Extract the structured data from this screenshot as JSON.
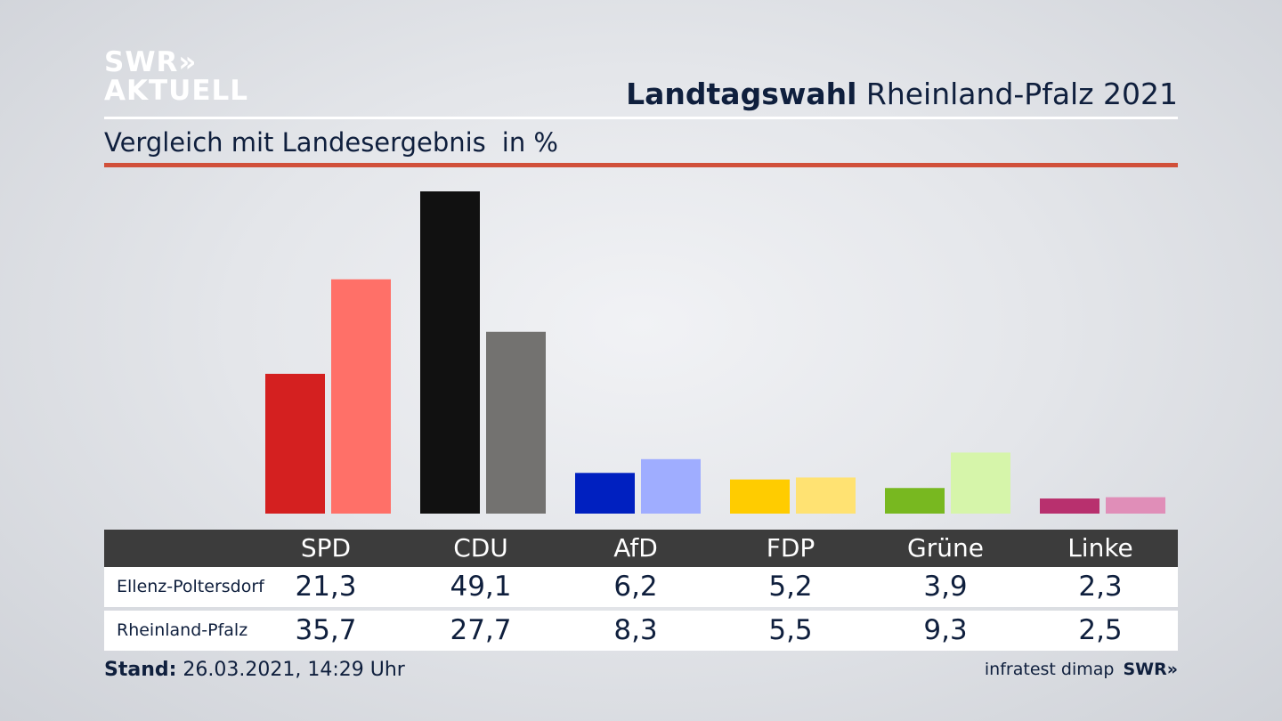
{
  "brand": {
    "line1": "SWR»",
    "line2": "AKTUELL"
  },
  "header": {
    "title_bold": "Landtagswahl",
    "title_rest": "Rheinland-Pfalz 2021"
  },
  "subtitle": {
    "text": "Vergleich mit Landesergebnis",
    "unit": "in %"
  },
  "colors": {
    "accent_rule": "#d1503a",
    "table_header": "#3c3c3c"
  },
  "chart_data": {
    "type": "bar",
    "categories": [
      "SPD",
      "CDU",
      "AfD",
      "FDP",
      "Grüne",
      "Linke"
    ],
    "series": [
      {
        "name": "Ellenz-Poltersdorf",
        "values": [
          21.3,
          49.1,
          6.2,
          5.2,
          3.9,
          2.3
        ],
        "colors": [
          "#d42020",
          "#111111",
          "#0020c0",
          "#ffcc00",
          "#78b820",
          "#b8306e"
        ]
      },
      {
        "name": "Rheinland-Pfalz",
        "values": [
          35.7,
          27.7,
          8.3,
          5.5,
          9.3,
          2.5
        ],
        "colors": [
          "#ff7068",
          "#737270",
          "#9fadff",
          "#ffe272",
          "#d6f5aa",
          "#e08eb8"
        ]
      }
    ],
    "ylim": [
      0,
      50
    ],
    "grid": false,
    "legend": "table-below"
  },
  "table": {
    "headers": [
      "SPD",
      "CDU",
      "AfD",
      "FDP",
      "Grüne",
      "Linke"
    ],
    "rows": [
      {
        "label": "Ellenz-Poltersdorf",
        "values": [
          "21,3",
          "49,1",
          "6,2",
          "5,2",
          "3,9",
          "2,3"
        ]
      },
      {
        "label": "Rheinland-Pfalz",
        "values": [
          "35,7",
          "27,7",
          "8,3",
          "5,5",
          "9,3",
          "2,5"
        ]
      }
    ]
  },
  "footer": {
    "stand_label": "Stand:",
    "stand_value": "26.03.2021, 14:29 Uhr",
    "source": "infratest dimap",
    "source_brand": "SWR»"
  }
}
